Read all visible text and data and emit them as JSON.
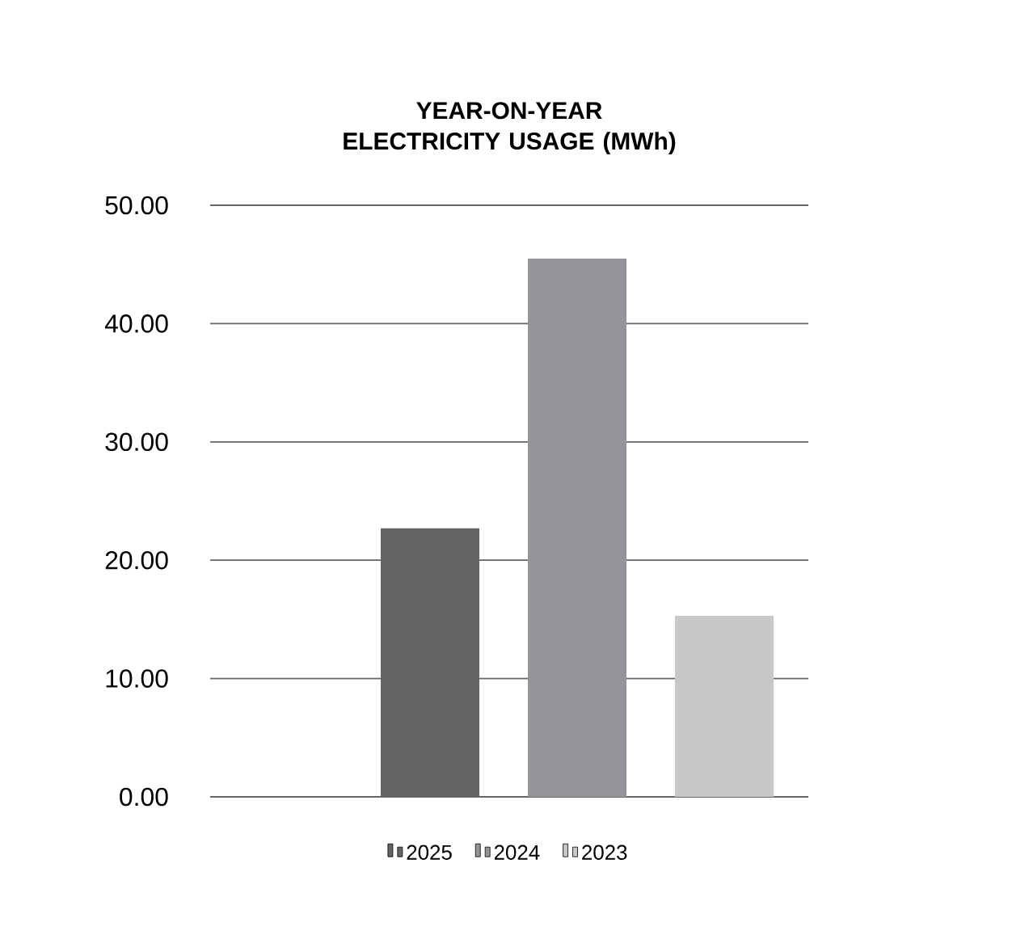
{
  "chart_data": {
    "type": "bar",
    "title": "YEAR-ON-YEAR ELECTRICITY USAGE (MWh)",
    "categories": [
      null
    ],
    "series": [
      {
        "name": "2025",
        "color": "#636466",
        "values": [
          22.7
        ]
      },
      {
        "name": "2024",
        "color": "#939598",
        "values": [
          45.5
        ]
      },
      {
        "name": "2023",
        "color": "#c6c7c9",
        "values": [
          15.3
        ]
      }
    ],
    "ylim": [
      0,
      50
    ],
    "yticks": [
      {
        "value": 0,
        "label": "0.00"
      },
      {
        "value": 10,
        "label": "10.00"
      },
      {
        "value": 20,
        "label": "20.00"
      },
      {
        "value": 30,
        "label": "30.00"
      },
      {
        "value": 40,
        "label": "40.00"
      },
      {
        "value": 50,
        "label": "50.00"
      }
    ],
    "grid": "y",
    "legend": "bottom"
  }
}
